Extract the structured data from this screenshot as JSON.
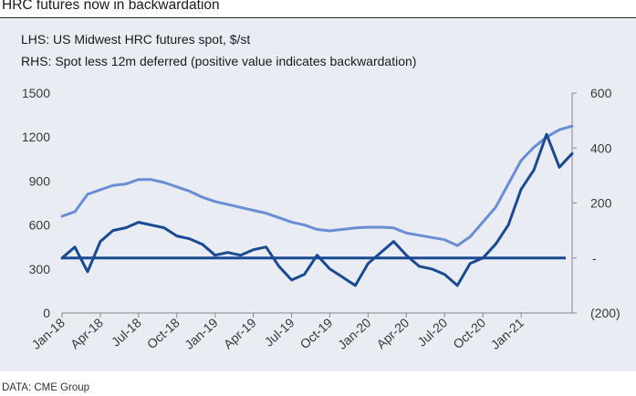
{
  "title": "HRC futures now in backwardation",
  "legend": [
    "LHS: US Midwest HRC futures spot, $/st",
    "RHS: Spot less 12m deferred (positive value indicates backwardation)"
  ],
  "source": "DATA: CME Group",
  "colors": {
    "spot": "#6a8ed6",
    "spread": "#1a4a94",
    "zero": "#1a4a94",
    "panel": "#e9ecf3"
  },
  "chart_data": {
    "type": "line",
    "left_axis": {
      "ticks": [
        "0",
        "300",
        "600",
        "900",
        "1200",
        "1500"
      ],
      "range": [
        0,
        1500
      ]
    },
    "right_axis": {
      "ticks": [
        "(200)",
        "-",
        "200",
        "400",
        "600"
      ],
      "range": [
        -200,
        600
      ]
    },
    "x_ticks": [
      "Jan-18",
      "Apr-18",
      "Jul-18",
      "Oct-18",
      "Jan-19",
      "Apr-19",
      "Jul-19",
      "Oct-19",
      "Jan-20",
      "Apr-20",
      "Jul-20",
      "Oct-20",
      "Jan-21"
    ],
    "x_range": [
      "2018-01",
      "2021-05"
    ],
    "series": [
      {
        "name": "LHS: US Midwest HRC futures spot, $/st",
        "axis": "left",
        "points": [
          [
            "2018-01",
            660
          ],
          [
            "2018-02",
            690
          ],
          [
            "2018-03",
            810
          ],
          [
            "2018-04",
            840
          ],
          [
            "2018-05",
            870
          ],
          [
            "2018-06",
            880
          ],
          [
            "2018-07",
            910
          ],
          [
            "2018-08",
            910
          ],
          [
            "2018-09",
            890
          ],
          [
            "2018-10",
            860
          ],
          [
            "2018-11",
            830
          ],
          [
            "2018-12",
            790
          ],
          [
            "2019-01",
            760
          ],
          [
            "2019-02",
            740
          ],
          [
            "2019-03",
            720
          ],
          [
            "2019-04",
            700
          ],
          [
            "2019-05",
            680
          ],
          [
            "2019-06",
            650
          ],
          [
            "2019-07",
            620
          ],
          [
            "2019-08",
            600
          ],
          [
            "2019-09",
            570
          ],
          [
            "2019-10",
            560
          ],
          [
            "2019-11",
            570
          ],
          [
            "2019-12",
            580
          ],
          [
            "2020-01",
            585
          ],
          [
            "2020-02",
            585
          ],
          [
            "2020-03",
            580
          ],
          [
            "2020-04",
            545
          ],
          [
            "2020-05",
            530
          ],
          [
            "2020-06",
            515
          ],
          [
            "2020-07",
            500
          ],
          [
            "2020-08",
            460
          ],
          [
            "2020-09",
            520
          ],
          [
            "2020-10",
            620
          ],
          [
            "2020-11",
            720
          ],
          [
            "2020-12",
            880
          ],
          [
            "2021-01",
            1040
          ],
          [
            "2021-02",
            1130
          ],
          [
            "2021-03",
            1200
          ],
          [
            "2021-04",
            1250
          ],
          [
            "2021-05",
            1275
          ]
        ]
      },
      {
        "name": "RHS: Spot less 12m deferred (positive value indicates backwardation)",
        "axis": "right",
        "points": [
          [
            "2018-01",
            0
          ],
          [
            "2018-02",
            40
          ],
          [
            "2018-03",
            -50
          ],
          [
            "2018-04",
            60
          ],
          [
            "2018-05",
            100
          ],
          [
            "2018-06",
            110
          ],
          [
            "2018-07",
            130
          ],
          [
            "2018-08",
            120
          ],
          [
            "2018-09",
            110
          ],
          [
            "2018-10",
            80
          ],
          [
            "2018-11",
            70
          ],
          [
            "2018-12",
            50
          ],
          [
            "2019-01",
            10
          ],
          [
            "2019-02",
            20
          ],
          [
            "2019-03",
            10
          ],
          [
            "2019-04",
            30
          ],
          [
            "2019-05",
            40
          ],
          [
            "2019-06",
            -30
          ],
          [
            "2019-07",
            -80
          ],
          [
            "2019-08",
            -60
          ],
          [
            "2019-09",
            10
          ],
          [
            "2019-10",
            -40
          ],
          [
            "2019-11",
            -70
          ],
          [
            "2019-12",
            -100
          ],
          [
            "2020-01",
            -20
          ],
          [
            "2020-02",
            20
          ],
          [
            "2020-03",
            60
          ],
          [
            "2020-04",
            10
          ],
          [
            "2020-05",
            -30
          ],
          [
            "2020-06",
            -40
          ],
          [
            "2020-07",
            -60
          ],
          [
            "2020-08",
            -100
          ],
          [
            "2020-09",
            -20
          ],
          [
            "2020-10",
            0
          ],
          [
            "2020-11",
            50
          ],
          [
            "2020-12",
            120
          ],
          [
            "2021-01",
            250
          ],
          [
            "2021-02",
            320
          ],
          [
            "2021-03",
            450
          ],
          [
            "2021-04",
            330
          ],
          [
            "2021-05",
            380
          ]
        ]
      }
    ],
    "zero_line": 0,
    "grid": false,
    "legend_position": "top-left"
  }
}
